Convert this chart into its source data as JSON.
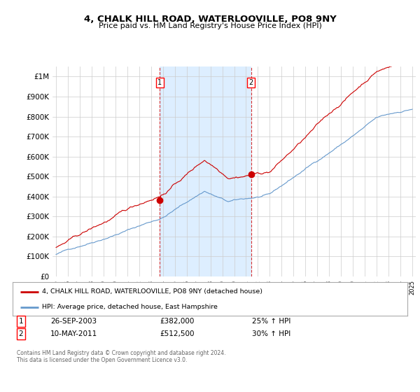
{
  "title": "4, CHALK HILL ROAD, WATERLOOVILLE, PO8 9NY",
  "subtitle": "Price paid vs. HM Land Registry's House Price Index (HPI)",
  "ylim": [
    0,
    1050000
  ],
  "yticks": [
    0,
    100000,
    200000,
    300000,
    400000,
    500000,
    600000,
    700000,
    800000,
    900000,
    1000000
  ],
  "ytick_labels": [
    "£0",
    "£100K",
    "£200K",
    "£300K",
    "£400K",
    "£500K",
    "£600K",
    "£700K",
    "£800K",
    "£900K",
    "£1M"
  ],
  "bg_color": "#ffffff",
  "highlight_color": "#ddeeff",
  "red_color": "#cc0000",
  "blue_color": "#6699cc",
  "grid_color": "#cccccc",
  "marker1_x": 8.75,
  "marker1_value": 382000,
  "marker2_x": 16.42,
  "marker2_value": 512500,
  "legend_label_red": "4, CHALK HILL ROAD, WATERLOOVILLE, PO8 9NY (detached house)",
  "legend_label_blue": "HPI: Average price, detached house, East Hampshire",
  "annot1_label": "1",
  "annot1_date": "26-SEP-2003",
  "annot1_price": "£382,000",
  "annot1_hpi": "25% ↑ HPI",
  "annot2_label": "2",
  "annot2_date": "10-MAY-2011",
  "annot2_price": "£512,500",
  "annot2_hpi": "30% ↑ HPI",
  "footer": "Contains HM Land Registry data © Crown copyright and database right 2024.\nThis data is licensed under the Open Government Licence v3.0.",
  "x_start_year": 1995,
  "n_months": 361,
  "seed": 42
}
